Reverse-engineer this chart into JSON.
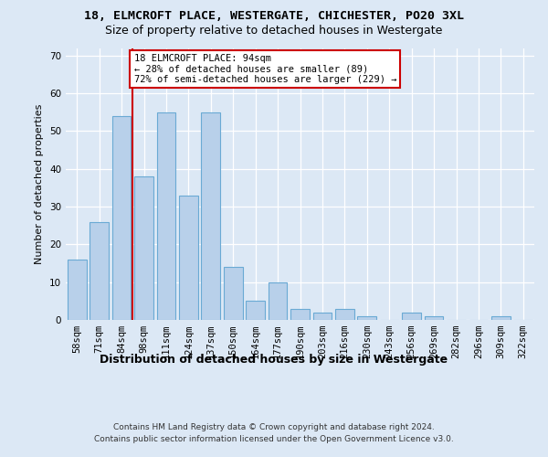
{
  "title1": "18, ELMCROFT PLACE, WESTERGATE, CHICHESTER, PO20 3XL",
  "title2": "Size of property relative to detached houses in Westergate",
  "xlabel": "Distribution of detached houses by size in Westergate",
  "ylabel": "Number of detached properties",
  "categories": [
    "58sqm",
    "71sqm",
    "84sqm",
    "98sqm",
    "111sqm",
    "124sqm",
    "137sqm",
    "150sqm",
    "164sqm",
    "177sqm",
    "190sqm",
    "203sqm",
    "216sqm",
    "230sqm",
    "243sqm",
    "256sqm",
    "269sqm",
    "282sqm",
    "296sqm",
    "309sqm",
    "322sqm"
  ],
  "values": [
    16,
    26,
    54,
    38,
    55,
    33,
    55,
    14,
    5,
    10,
    3,
    2,
    3,
    1,
    0,
    2,
    1,
    0,
    0,
    1,
    0
  ],
  "bar_color": "#b8d0ea",
  "bar_edge_color": "#6aaad4",
  "vline_index": 2.5,
  "vline_color": "#cc0000",
  "annotation_line1": "18 ELMCROFT PLACE: 94sqm",
  "annotation_line2": "← 28% of detached houses are smaller (89)",
  "annotation_line3": "72% of semi-detached houses are larger (229) →",
  "annotation_box_color": "#ffffff",
  "annotation_box_edge": "#cc0000",
  "ylim_max": 72,
  "yticks": [
    0,
    10,
    20,
    30,
    40,
    50,
    60,
    70
  ],
  "footer1": "Contains HM Land Registry data © Crown copyright and database right 2024.",
  "footer2": "Contains public sector information licensed under the Open Government Licence v3.0.",
  "bg_color": "#dce8f5",
  "title1_fontsize": 9.5,
  "title2_fontsize": 9.0,
  "ylabel_fontsize": 8.0,
  "xlabel_fontsize": 9.0,
  "tick_fontsize": 7.5,
  "annotation_fontsize": 7.5,
  "footer_fontsize": 6.5
}
